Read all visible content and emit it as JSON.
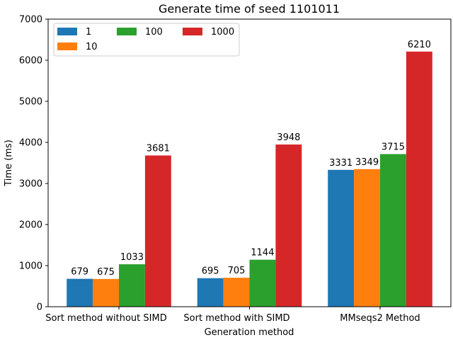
{
  "chart_data": {
    "type": "bar",
    "title": "Generate time of seed 1101011",
    "xlabel": "Generation method",
    "ylabel": "Time (ms)",
    "categories": [
      "Sort method without SIMD",
      "Sort method with SIMD",
      "MMseqs2 Method"
    ],
    "series": [
      {
        "name": "1",
        "values": [
          679,
          695,
          3331
        ],
        "color": "#1f77b4"
      },
      {
        "name": "10",
        "values": [
          675,
          705,
          3349
        ],
        "color": "#ff7f0e"
      },
      {
        "name": "100",
        "values": [
          1033,
          1144,
          3715
        ],
        "color": "#2ca02c"
      },
      {
        "name": "1000",
        "values": [
          3681,
          3948,
          6210
        ],
        "color": "#d62728"
      }
    ],
    "ylim": [
      0,
      7000
    ],
    "yticks": [
      0,
      1000,
      2000,
      3000,
      4000,
      5000,
      6000,
      7000
    ],
    "grid": false,
    "legend_position": "top-left",
    "legend_columns": 3
  }
}
